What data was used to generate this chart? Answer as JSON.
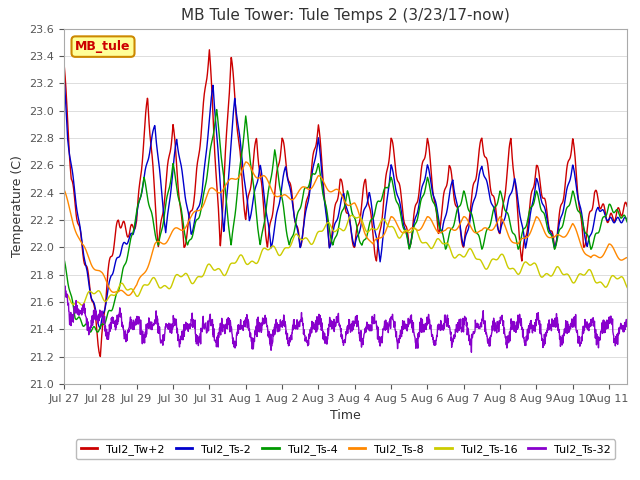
{
  "title": "MB Tule Tower: Tule Temps 2 (3/23/17-now)",
  "xlabel": "Time",
  "ylabel": "Temperature (C)",
  "ylim": [
    21.0,
    23.6
  ],
  "yticks": [
    21.0,
    21.2,
    21.4,
    21.6,
    21.8,
    22.0,
    22.2,
    22.4,
    22.6,
    22.8,
    23.0,
    23.2,
    23.4,
    23.6
  ],
  "x_tick_labels": [
    "Jul 27",
    "Jul 28",
    "Jul 29",
    "Jul 30",
    "Jul 31",
    "Aug 1",
    "Aug 2",
    "Aug 3",
    "Aug 4",
    "Aug 5",
    "Aug 6",
    "Aug 7",
    "Aug 8",
    "Aug 9",
    "Aug 10",
    "Aug 11"
  ],
  "series_colors": [
    "#cc0000",
    "#0000cc",
    "#009900",
    "#ff8800",
    "#cccc00",
    "#8800cc"
  ],
  "series_labels": [
    "Tul2_Tw+2",
    "Tul2_Ts-2",
    "Tul2_Ts-4",
    "Tul2_Ts-8",
    "Tul2_Ts-16",
    "Tul2_Ts-32"
  ],
  "legend_box_color": "#ffff99",
  "legend_box_edge": "#cc8800",
  "annotation_text": "MB_tule",
  "annotation_color": "#cc0000",
  "background_color": "#ffffff",
  "grid_color": "#dddddd",
  "title_fontsize": 11,
  "axis_fontsize": 9,
  "tick_fontsize": 8,
  "legend_fontsize": 8
}
